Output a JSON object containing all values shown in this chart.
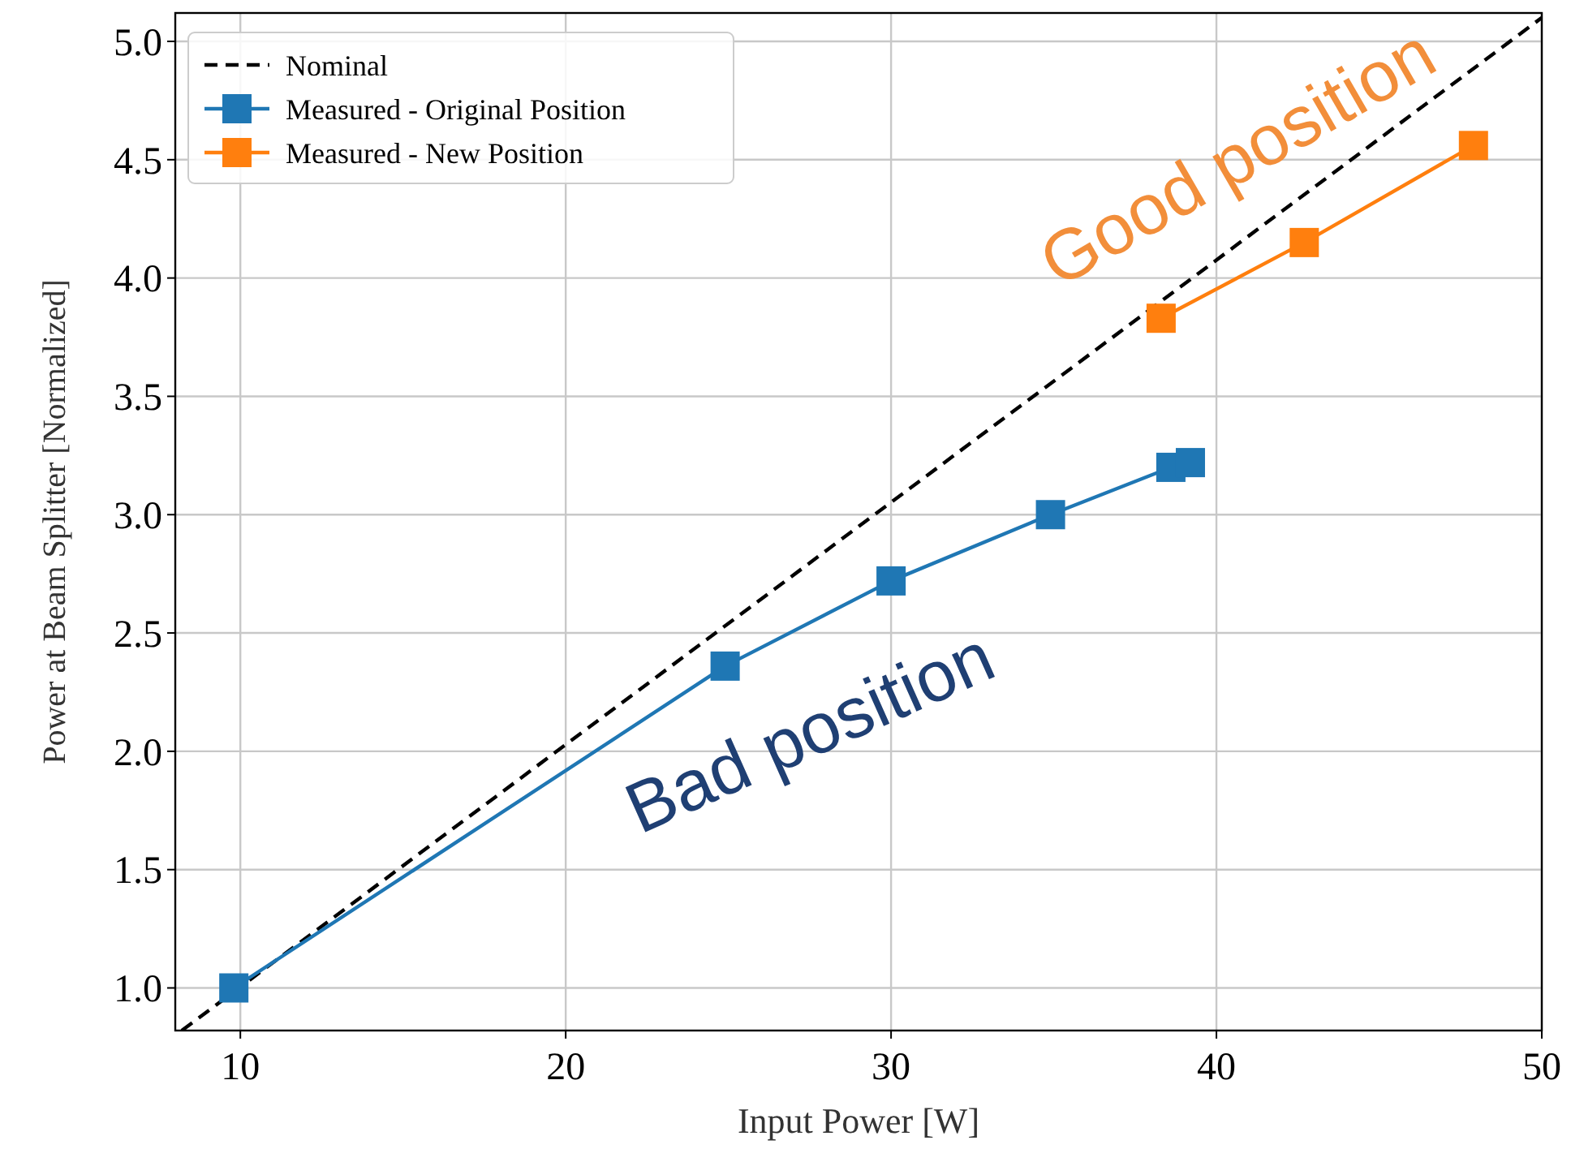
{
  "chart_data": {
    "type": "line",
    "xlabel": "Input Power [W]",
    "ylabel": "Power at Beam Splitter [Normalized]",
    "xlim": [
      8,
      50
    ],
    "ylim": [
      0.82,
      5.12
    ],
    "xticks": [
      10,
      20,
      30,
      40,
      50
    ],
    "yticks": [
      {
        "value": 1,
        "label": "1.0"
      },
      1.5,
      {
        "value": 2,
        "label": "2.0"
      },
      2.5,
      {
        "value": 3,
        "label": "3.0"
      },
      3.5,
      {
        "value": 4,
        "label": "4.0"
      },
      4.5,
      {
        "value": 5,
        "label": "5.0"
      }
    ],
    "grid": true,
    "legend": "top left",
    "series": [
      {
        "name": "Nominal",
        "color": "#000000",
        "line_style": "dashed",
        "marker": "none",
        "x": [
          8.2,
          50
        ],
        "values": [
          0.82,
          5.1
        ]
      },
      {
        "name": "Measured - Original Position",
        "color": "#1f77b4",
        "marker": "square",
        "x": [
          9.8,
          24.9,
          30,
          34.9,
          38.6,
          39.2
        ],
        "values": [
          1.0,
          2.36,
          2.72,
          3.0,
          3.2,
          3.22
        ]
      },
      {
        "name": "Measured - New Position",
        "color": "#ff7f0e",
        "marker": "square",
        "x": [
          38.3,
          42.7,
          47.9
        ],
        "values": [
          3.83,
          4.15,
          4.56
        ]
      }
    ],
    "annotations": [
      "Good position",
      "Bad position"
    ]
  }
}
